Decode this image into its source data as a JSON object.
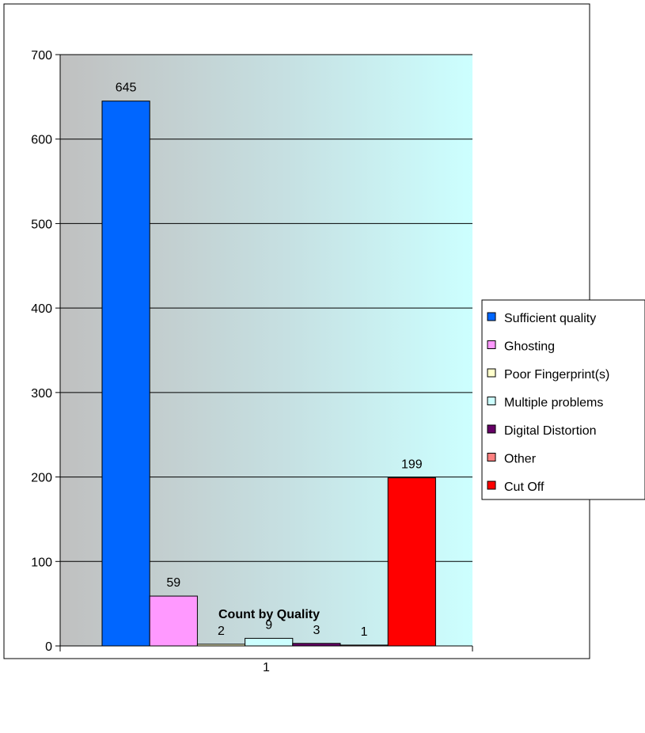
{
  "chart_data": {
    "type": "bar",
    "categories": [
      "1"
    ],
    "xlabel": "Count by Quality",
    "ylabel": "",
    "title": "",
    "ylim": [
      0,
      700
    ],
    "yticks": [
      0,
      100,
      200,
      300,
      400,
      500,
      600,
      700
    ],
    "grid": true,
    "legend_position": "right",
    "series": [
      {
        "name": "Sufficient quality",
        "values": [
          645
        ],
        "color": "#0066ff",
        "label": "645"
      },
      {
        "name": "Ghosting",
        "values": [
          59
        ],
        "color": "#ff99ff",
        "label": "59"
      },
      {
        "name": "Poor Fingerprint(s)",
        "values": [
          2
        ],
        "color": "#ffffcc",
        "label": "2"
      },
      {
        "name": "Multiple problems",
        "values": [
          9
        ],
        "color": "#ccffff",
        "label": "9"
      },
      {
        "name": "Digital Distortion",
        "values": [
          3
        ],
        "color": "#660066",
        "label": "3"
      },
      {
        "name": "Other",
        "values": [
          1
        ],
        "color": "#ff8080",
        "label": "1"
      },
      {
        "name": "Cut Off",
        "values": [
          199
        ],
        "color": "#ff0000",
        "label": "199"
      }
    ]
  }
}
